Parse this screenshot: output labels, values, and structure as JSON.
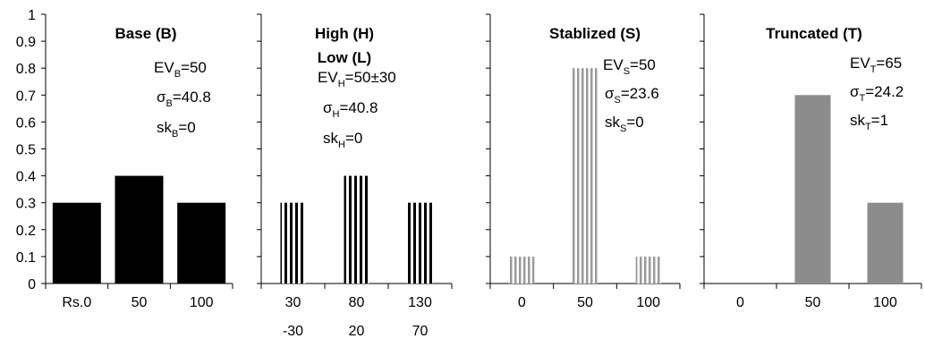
{
  "colors": {
    "base": "#000000",
    "high_low_stripe": "#000000",
    "stabilized_stripe": "#9a9a9a",
    "truncated": "#8c8c8c",
    "axis": "#000000"
  },
  "y_ticks": [
    "0",
    "0.1",
    "0.2",
    "0.3",
    "0.4",
    "0.5",
    "0.6",
    "0.7",
    "0.8",
    "0.9",
    "1"
  ],
  "chart_data": [
    {
      "type": "bar",
      "title": "Base (B)",
      "categories": [
        "Rs.0",
        "50",
        "100"
      ],
      "values": [
        0.3,
        0.4,
        0.3
      ],
      "ylim": [
        0,
        1
      ],
      "ylabel": "",
      "xlabel": "",
      "style": "solid",
      "annotations": [
        {
          "base": "EV",
          "sub": "B",
          "rest": "=50"
        },
        {
          "base": "σ",
          "sub": "B",
          "rest": "=40.8"
        },
        {
          "base": "sk",
          "sub": "B",
          "rest": "=0"
        }
      ]
    },
    {
      "type": "bar",
      "title": "High (H)",
      "subtitle": "Low (L)",
      "categories": [
        "30",
        "80",
        "130"
      ],
      "categories_line2": [
        "-30",
        "20",
        "70"
      ],
      "values": [
        0.3,
        0.4,
        0.3
      ],
      "ylim": [
        0,
        1
      ],
      "style": "dark-stripes",
      "annotations": [
        {
          "base": "EV",
          "sub": "H",
          "rest": "=50±30"
        },
        {
          "base": "σ",
          "sub": "H",
          "rest": "=40.8"
        },
        {
          "base": "sk",
          "sub": "H",
          "rest": "=0"
        }
      ]
    },
    {
      "type": "bar",
      "title": "Stablized (S)",
      "categories": [
        "0",
        "50",
        "100"
      ],
      "values": [
        0.1,
        0.8,
        0.1
      ],
      "ylim": [
        0,
        1
      ],
      "style": "light-stripes",
      "annotations": [
        {
          "base": "EV",
          "sub": "S",
          "rest": "=50"
        },
        {
          "base": "σ",
          "sub": "S",
          "rest": "=23.6"
        },
        {
          "base": "sk",
          "sub": "S",
          "rest": "=0"
        }
      ]
    },
    {
      "type": "bar",
      "title": "Truncated (T)",
      "categories": [
        "0",
        "50",
        "100"
      ],
      "values": [
        0,
        0.7,
        0.3
      ],
      "ylim": [
        0,
        1
      ],
      "style": "solid-gray",
      "annotations": [
        {
          "base": "EV",
          "sub": "T",
          "rest": "=65"
        },
        {
          "base": "σ",
          "sub": "T",
          "rest": "=24.2"
        },
        {
          "base": "sk",
          "sub": "T",
          "rest": "=1"
        }
      ]
    }
  ]
}
